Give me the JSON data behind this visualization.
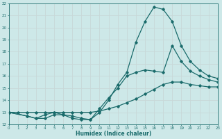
{
  "xlabel": "Humidex (Indice chaleur)",
  "xlim": [
    0,
    23
  ],
  "ylim": [
    12,
    22
  ],
  "xticks": [
    0,
    1,
    2,
    3,
    4,
    5,
    6,
    7,
    8,
    9,
    10,
    11,
    12,
    13,
    14,
    15,
    16,
    17,
    18,
    19,
    20,
    21,
    22,
    23
  ],
  "yticks": [
    12,
    13,
    14,
    15,
    16,
    17,
    18,
    19,
    20,
    21,
    22
  ],
  "bg_color": "#cde8e8",
  "line_color": "#1a6b6b",
  "grid_color": "#b8d8d8",
  "curve1_x": [
    0,
    1,
    2,
    3,
    4,
    5,
    6,
    7,
    8,
    9,
    10,
    11,
    12,
    13,
    14,
    15,
    16,
    17,
    18,
    19,
    20,
    21,
    22,
    23
  ],
  "curve1_y": [
    13.0,
    13.0,
    13.0,
    13.0,
    13.0,
    13.0,
    13.0,
    13.0,
    13.0,
    13.0,
    13.1,
    13.3,
    13.5,
    13.8,
    14.1,
    14.5,
    14.9,
    15.3,
    15.5,
    15.5,
    15.3,
    15.2,
    15.1,
    15.1
  ],
  "curve2_x": [
    0,
    2,
    3,
    4,
    5,
    6,
    7,
    8,
    9,
    10,
    11,
    12,
    13,
    14,
    15,
    16,
    17,
    18,
    19,
    20,
    21,
    22,
    23
  ],
  "curve2_y": [
    13.0,
    12.7,
    12.5,
    12.5,
    12.8,
    12.8,
    12.7,
    12.5,
    12.4,
    13.3,
    14.2,
    15.0,
    16.0,
    16.3,
    16.5,
    16.4,
    16.3,
    18.5,
    17.2,
    16.4,
    16.0,
    15.7,
    15.5
  ],
  "curve3_x": [
    0,
    2,
    3,
    4,
    5,
    6,
    7,
    8,
    9,
    10,
    11,
    12,
    13,
    14,
    15,
    16,
    17,
    18,
    19,
    20,
    21,
    22,
    23
  ],
  "curve3_y": [
    13.0,
    12.7,
    12.5,
    12.8,
    13.0,
    12.8,
    12.5,
    12.4,
    12.4,
    13.0,
    14.0,
    15.3,
    16.3,
    18.8,
    20.5,
    21.7,
    21.5,
    20.5,
    18.5,
    17.2,
    16.5,
    16.0,
    15.8
  ]
}
